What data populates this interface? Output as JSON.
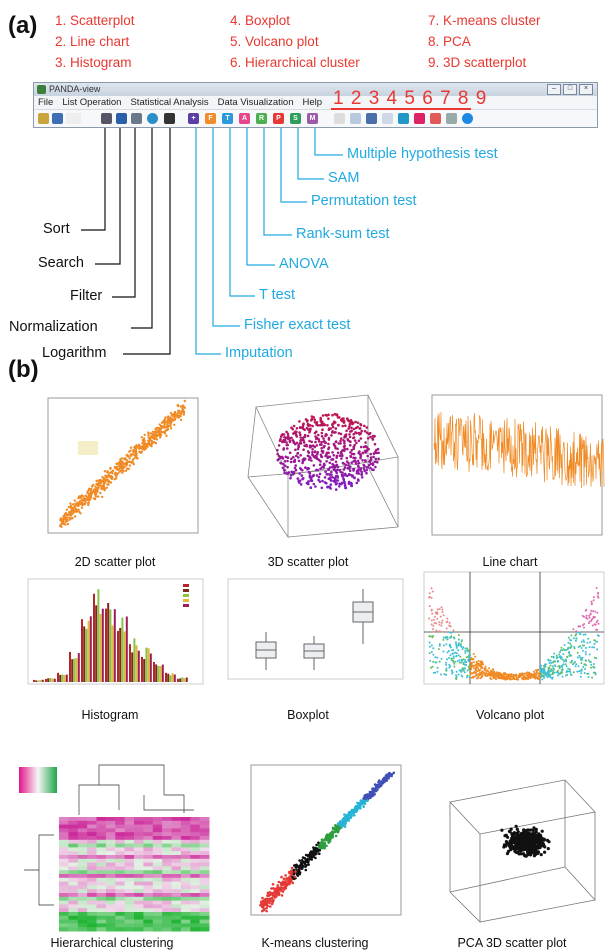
{
  "panel_a": {
    "letter": "(a)"
  },
  "panel_b": {
    "letter": "(b)"
  },
  "legend": [
    "1. Scatterplot",
    "2. Line chart",
    "3. Histogram",
    "4. Boxplot",
    "5. Volcano plot",
    "6. Hierarchical cluster",
    "7. K-means cluster",
    "8. PCA",
    "9. 3D scatterplot"
  ],
  "window": {
    "title": "PANDA-view",
    "menu": [
      "File",
      "List Operation",
      "Statistical Analysis",
      "Data Visualization",
      "Help"
    ],
    "toolbar_numbers": "1 2 3 4 5 6 7 8 9"
  },
  "left_labels": [
    "Sort",
    "Search",
    "Filter",
    "Normalization",
    "Logarithm"
  ],
  "right_labels": [
    "Multiple hypothesis test",
    "SAM",
    "Permutation test",
    "Rank-sum test",
    "ANOVA",
    "T test",
    "Fisher exact test",
    "Imputation"
  ],
  "captions": [
    "2D scatter plot",
    "3D scatter plot",
    "Line chart",
    "Histogram",
    "Boxplot",
    "Volcano plot",
    "Hierarchical clustering",
    "K-means clustering",
    "PCA 3D scatter plot"
  ],
  "colors": {
    "accent_red": "#e8382f",
    "accent_blue": "#21a9e1",
    "orange": "#f08a24"
  }
}
